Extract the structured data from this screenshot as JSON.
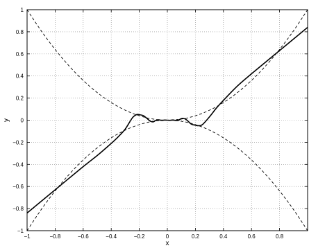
{
  "chart_data": {
    "type": "line",
    "xlabel": "x",
    "ylabel": "y",
    "xlim": [
      -1,
      1
    ],
    "ylim": [
      -1,
      1
    ],
    "grid": true,
    "xticks": [
      -1,
      -0.8,
      -0.6,
      -0.4,
      -0.2,
      0,
      0.2,
      0.4,
      0.6,
      0.8
    ],
    "xtick_labels": [
      "−1",
      "−0.8",
      "−0.6",
      "−0.4",
      "−0.2",
      "0",
      "0.2",
      "0.4",
      "0.6",
      "0.8"
    ],
    "yticks": [
      1,
      0.8,
      0.6,
      0.4,
      0.2,
      0,
      -0.2,
      -0.4,
      -0.6,
      -0.8,
      -1
    ],
    "ytick_labels": [
      "1",
      "0.8",
      "0.6",
      "0.4",
      "0.2",
      "0",
      "−0.2",
      "−0.4",
      "−0.6",
      "−0.8",
      "−1"
    ],
    "series": [
      {
        "style": "solid",
        "color": "#000000",
        "x": [
          -1,
          -0.8,
          -0.6,
          -0.5,
          -0.4,
          -0.35,
          -0.3,
          -0.25,
          -0.22,
          -0.2,
          -0.17,
          -0.14,
          -0.12,
          -0.1,
          -0.08,
          -0.06,
          -0.04,
          -0.02,
          0,
          0.02,
          0.04,
          0.06,
          0.08,
          0.1,
          0.12,
          0.14,
          0.17,
          0.2,
          0.22,
          0.25,
          0.3,
          0.35,
          0.4,
          0.5,
          0.6,
          0.8,
          1
        ],
        "y": [
          -0.84,
          -0.63,
          -0.42,
          -0.32,
          -0.21,
          -0.15,
          -0.08,
          0.02,
          0.05,
          0.05,
          0.04,
          0.01,
          -0.01,
          -0.015,
          0.0,
          0.003,
          -0.002,
          0.001,
          0,
          -0.001,
          0.002,
          -0.003,
          0.0,
          0.015,
          0.015,
          0.0,
          -0.035,
          -0.045,
          -0.05,
          -0.04,
          0.03,
          0.11,
          0.18,
          0.31,
          0.42,
          0.63,
          0.84
        ]
      },
      {
        "style": "dashed",
        "color": "#000000",
        "x": [
          -1,
          -0.9,
          -0.8,
          -0.7,
          -0.6,
          -0.5,
          -0.4,
          -0.3,
          -0.2,
          -0.1,
          0,
          0.1,
          0.2,
          0.3,
          0.4,
          0.5,
          0.6,
          0.7,
          0.8,
          0.9,
          1
        ],
        "y": [
          1,
          0.81,
          0.64,
          0.49,
          0.36,
          0.25,
          0.16,
          0.09,
          0.04,
          0.01,
          0,
          0.01,
          0.04,
          0.09,
          0.16,
          0.25,
          0.36,
          0.49,
          0.64,
          0.81,
          1
        ]
      },
      {
        "style": "dashed",
        "color": "#000000",
        "x": [
          -1,
          -0.9,
          -0.8,
          -0.7,
          -0.6,
          -0.5,
          -0.4,
          -0.3,
          -0.2,
          -0.1,
          0,
          0.1,
          0.2,
          0.3,
          0.4,
          0.5,
          0.6,
          0.7,
          0.8,
          0.9,
          1
        ],
        "y": [
          -1,
          -0.81,
          -0.64,
          -0.49,
          -0.36,
          -0.25,
          -0.16,
          -0.09,
          -0.04,
          -0.01,
          0,
          -0.01,
          -0.04,
          -0.09,
          -0.16,
          -0.25,
          -0.36,
          -0.49,
          -0.64,
          -0.81,
          -1
        ]
      }
    ]
  }
}
